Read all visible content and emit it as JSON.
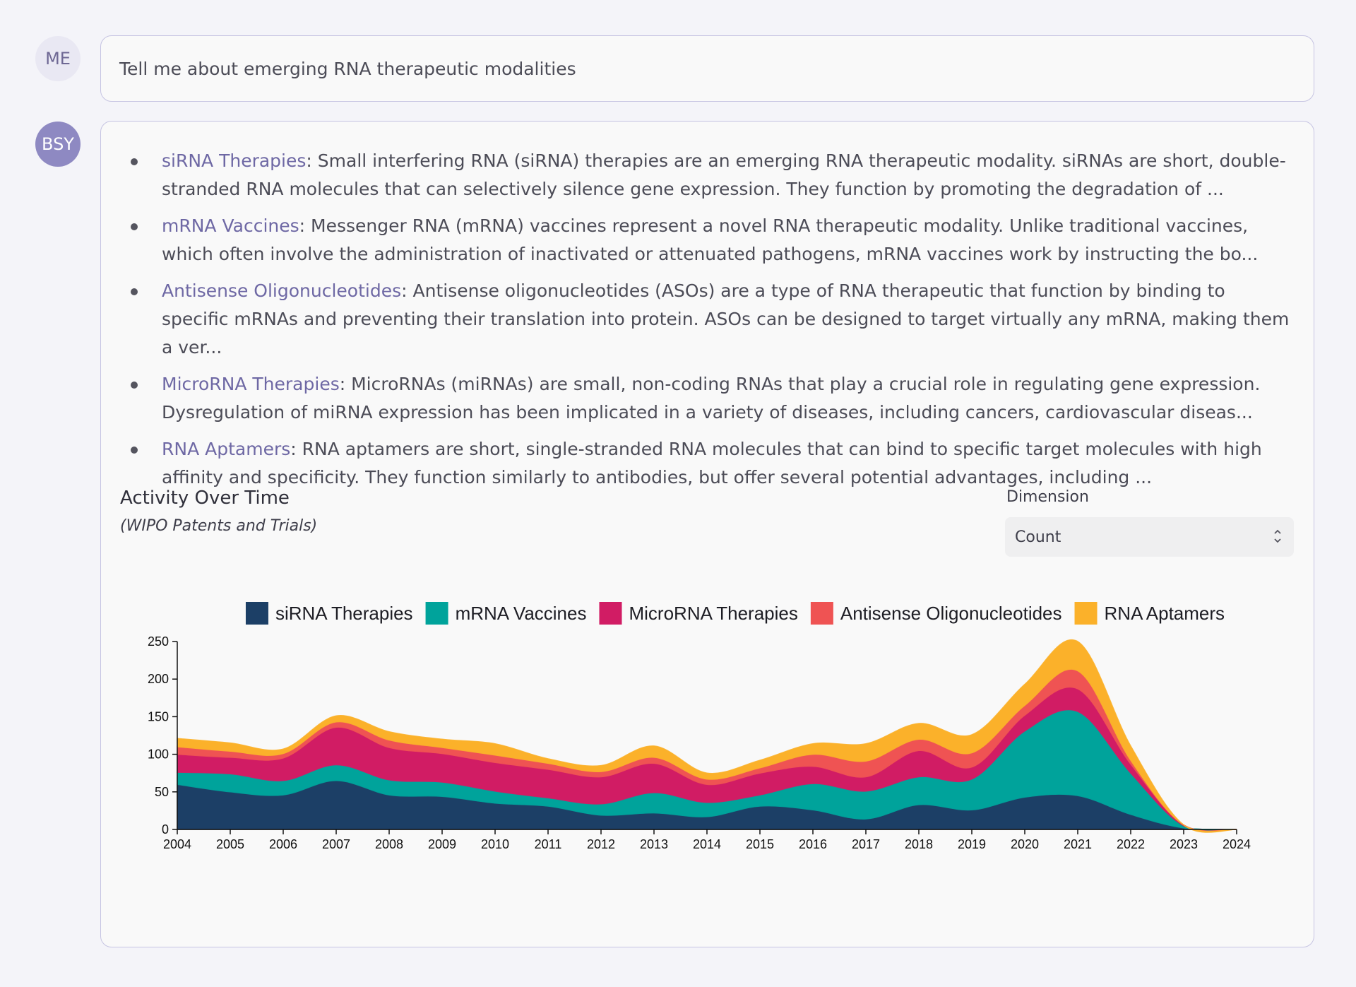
{
  "user": {
    "avatar_label": "ME",
    "message": "Tell me about emerging RNA therapeutic modalities"
  },
  "assistant": {
    "avatar_label": "BSY",
    "items": [
      {
        "term": "siRNA Therapies",
        "text": ": Small interfering RNA (siRNA) therapies are an emerging RNA therapeutic modality. siRNAs are short, double-stranded RNA molecules that can selectively silence gene expression. They function by promoting the degradation of ..."
      },
      {
        "term": "mRNA Vaccines",
        "text": ": Messenger RNA (mRNA) vaccines represent a novel RNA therapeutic modality. Unlike traditional vaccines, which often involve the administration of inactivated or attenuated pathogens, mRNA vaccines work by instructing the bo..."
      },
      {
        "term": "Antisense Oligonucleotides",
        "text": ": Antisense oligonucleotides (ASOs) are a type of RNA therapeutic that function by binding to specific mRNAs and preventing their translation into protein. ASOs can be designed to target virtually any mRNA, making them a ver..."
      },
      {
        "term": "MicroRNA Therapies",
        "text": ": MicroRNAs (miRNAs) are small, non-coding RNAs that play a crucial role in regulating gene expression. Dysregulation of miRNA expression has been implicated in a variety of diseases, including cancers, cardiovascular diseas..."
      },
      {
        "term": "RNA Aptamers",
        "text": ": RNA aptamers are short, single-stranded RNA molecules that can bind to specific target molecules with high affinity and specificity. They function similarly to antibodies, but offer several potential advantages, including ..."
      }
    ],
    "chart_panel": {
      "title": "Activity Over Time",
      "subtitle": "(WIPO Patents and Trials)",
      "dimension_label": "Dimension",
      "dimension_value": "Count",
      "chevron_icon": "up-down-chevron-icon"
    }
  },
  "chart_data": {
    "type": "area",
    "stacked": true,
    "x": [
      "2004",
      "2005",
      "2006",
      "2007",
      "2008",
      "2009",
      "2010",
      "2011",
      "2012",
      "2013",
      "2014",
      "2015",
      "2016",
      "2017",
      "2018",
      "2019",
      "2020",
      "2021",
      "2022",
      "2023",
      "2024"
    ],
    "ylim": [
      0,
      250
    ],
    "yticks": [
      0,
      50,
      100,
      150,
      200,
      250
    ],
    "legend_position": "top",
    "series": [
      {
        "name": "siRNA Therapies",
        "color": "#1c3f66",
        "values": [
          60,
          50,
          46,
          65,
          46,
          44,
          35,
          31,
          19,
          22,
          17,
          31,
          26,
          14,
          33,
          26,
          43,
          45,
          20,
          2,
          0
        ]
      },
      {
        "name": "mRNA Vaccines",
        "color": "#00a39b",
        "values": [
          16,
          24,
          19,
          21,
          20,
          19,
          16,
          11,
          15,
          27,
          19,
          15,
          35,
          37,
          37,
          41,
          88,
          112,
          55,
          3,
          0
        ]
      },
      {
        "name": "MicroRNA Therapies",
        "color": "#d11c64",
        "values": [
          24,
          22,
          30,
          50,
          43,
          38,
          38,
          38,
          36,
          39,
          24,
          29,
          23,
          19,
          35,
          16,
          21,
          30,
          12,
          1,
          0
        ]
      },
      {
        "name": "Antisense Oligonucleotides",
        "color": "#ef5353",
        "values": [
          10,
          8,
          6,
          7,
          10,
          8,
          10,
          8,
          7,
          8,
          7,
          7,
          16,
          21,
          15,
          19,
          13,
          24,
          5,
          0,
          0
        ]
      },
      {
        "name": "RNA Aptamers",
        "color": "#fbb12a",
        "values": [
          11,
          11,
          6,
          8,
          11,
          11,
          15,
          6,
          8,
          15,
          8,
          10,
          14,
          23,
          21,
          24,
          28,
          39,
          19,
          0,
          0
        ]
      }
    ]
  }
}
